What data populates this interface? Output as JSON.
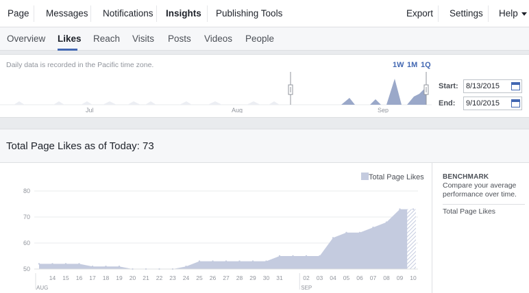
{
  "topnav": {
    "page": "Page",
    "messages": "Messages",
    "notifications": "Notifications",
    "insights": "Insights",
    "publishing_tools": "Publishing Tools",
    "export": "Export",
    "settings": "Settings",
    "help": "Help"
  },
  "subnav": {
    "tabs": [
      "Overview",
      "Likes",
      "Reach",
      "Visits",
      "Posts",
      "Videos",
      "People"
    ],
    "active": "Likes"
  },
  "timeline": {
    "tz_note": "Daily data is recorded in the Pacific time zone.",
    "ranges": [
      "1W",
      "1M",
      "1Q"
    ],
    "month_labels": [
      "Jul",
      "Aug",
      "Sep"
    ],
    "start_label": "Start:",
    "start_value": "8/13/2015",
    "end_label": "End:",
    "end_value": "9/10/2015"
  },
  "summary": {
    "total_title": "Total Page Likes as of Today: 73"
  },
  "benchmark": {
    "title": "BENCHMARK",
    "description": "Compare your average performance over time.",
    "item": "Total Page Likes"
  },
  "colors": {
    "accent": "#4267b2",
    "area_fill": "#c4cbdf",
    "mini_area_fill": "#9aa8c9"
  },
  "chart_data": {
    "type": "area",
    "legend": [
      "Total Page Likes"
    ],
    "series": [
      {
        "name": "Total Page Likes",
        "x": [
          "13",
          "14",
          "15",
          "16",
          "17",
          "18",
          "19",
          "20",
          "21",
          "22",
          "23",
          "24",
          "25",
          "26",
          "27",
          "28",
          "29",
          "30",
          "31",
          "01",
          "02",
          "03",
          "04",
          "05",
          "06",
          "07",
          "08",
          "09",
          "10"
        ],
        "values": [
          52,
          52,
          52,
          52,
          51,
          51,
          51,
          50,
          50,
          50,
          50,
          51,
          53,
          53,
          53,
          53,
          53,
          53,
          55,
          55,
          55,
          55,
          62,
          64,
          64,
          66,
          68,
          73,
          73
        ]
      }
    ],
    "x_tick_labels": [
      "14",
      "15",
      "16",
      "17",
      "18",
      "19",
      "20",
      "21",
      "22",
      "23",
      "24",
      "25",
      "26",
      "27",
      "28",
      "29",
      "30",
      "31",
      "02",
      "03",
      "04",
      "05",
      "06",
      "07",
      "08",
      "09",
      "10"
    ],
    "month_labels": [
      "AUG",
      "SEP"
    ],
    "yticks": [
      50,
      60,
      70,
      80
    ],
    "ylim": [
      50,
      80
    ],
    "legend_position": "top-right",
    "grid": true
  }
}
